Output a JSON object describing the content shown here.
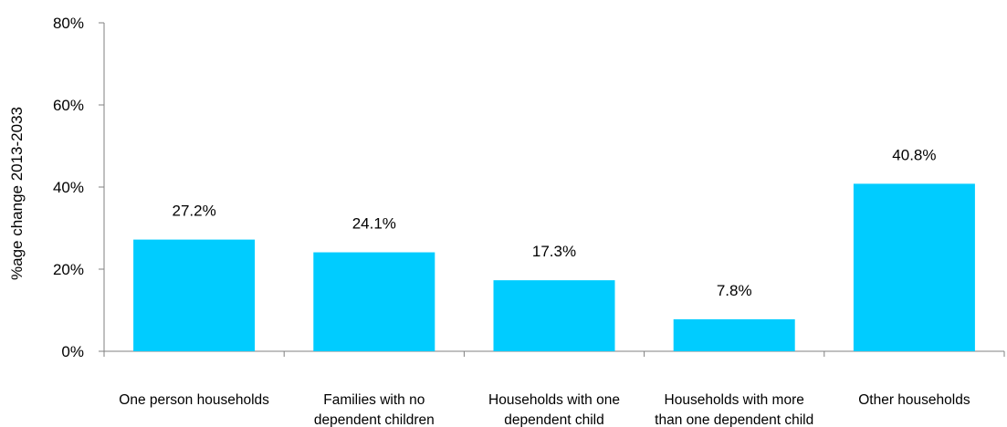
{
  "chart_data": {
    "type": "bar",
    "title": "",
    "xlabel": "",
    "ylabel": "%age change 2013-2033",
    "ylim": [
      0,
      80
    ],
    "yticks": [
      0,
      20,
      40,
      60,
      80
    ],
    "ytick_suffix": "%",
    "grid": false,
    "categories": [
      [
        "One person households"
      ],
      [
        "Families with no",
        "dependent children"
      ],
      [
        "Households with one",
        "dependent child"
      ],
      [
        "Households with more",
        "than one dependent child"
      ],
      [
        "Other households"
      ]
    ],
    "values": [
      27.2,
      24.1,
      17.3,
      7.8,
      40.8
    ],
    "data_labels": [
      "27.2%",
      "24.1%",
      "17.3%",
      "7.8%",
      "40.8%"
    ],
    "bar_color": "#00CCFF",
    "axis_color": "#808080"
  }
}
